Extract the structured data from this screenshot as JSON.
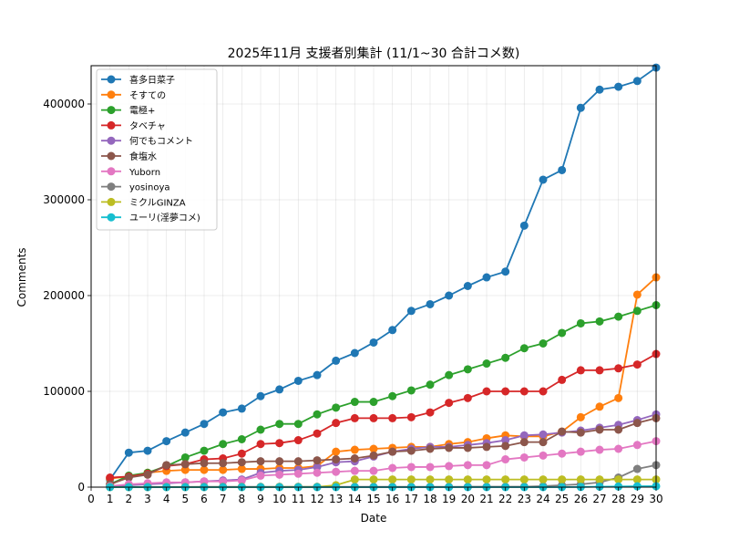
{
  "chart_data": {
    "type": "line",
    "title": "2025年11月 支援者別集計 (11/1~30 合計コメ数)",
    "xlabel": "Date",
    "ylabel": "Comments",
    "xlim": [
      0,
      30
    ],
    "ylim": [
      0,
      440000
    ],
    "x_ticks": [
      0,
      1,
      2,
      3,
      4,
      5,
      6,
      7,
      8,
      9,
      10,
      11,
      12,
      13,
      14,
      15,
      16,
      17,
      18,
      19,
      20,
      21,
      22,
      23,
      24,
      25,
      26,
      27,
      28,
      29,
      30
    ],
    "y_ticks": [
      0,
      100000,
      200000,
      300000,
      400000
    ],
    "grid": true,
    "legend_position": "top-left",
    "x": [
      1,
      2,
      3,
      4,
      5,
      6,
      7,
      8,
      9,
      10,
      11,
      12,
      13,
      14,
      15,
      16,
      17,
      18,
      19,
      20,
      21,
      22,
      23,
      24,
      25,
      26,
      27,
      28,
      29,
      30
    ],
    "series": [
      {
        "name": "喜多日菜子",
        "color": "#1f77b4",
        "values": [
          8000,
          36000,
          38000,
          48000,
          57000,
          66000,
          78000,
          82000,
          95000,
          102000,
          111000,
          117000,
          132000,
          140000,
          151000,
          164000,
          184000,
          191000,
          200000,
          210000,
          219000,
          225000,
          273000,
          321000,
          331000,
          396000,
          415000,
          418000,
          424000,
          438000
        ]
      },
      {
        "name": "そすての",
        "color": "#ff7f0e",
        "values": [
          9000,
          11000,
          15000,
          17000,
          18000,
          18000,
          18000,
          19000,
          19000,
          20000,
          20000,
          22000,
          37000,
          39000,
          40000,
          41000,
          42000,
          42000,
          45000,
          47000,
          51000,
          54000,
          53000,
          53000,
          58000,
          73000,
          84000,
          93000,
          201000,
          219000
        ]
      },
      {
        "name": "電極+",
        "color": "#2ca02c",
        "values": [
          3000,
          12000,
          15000,
          22000,
          31000,
          38000,
          45000,
          50000,
          60000,
          66000,
          66000,
          76000,
          83000,
          89000,
          89000,
          95000,
          101000,
          107000,
          117000,
          123000,
          129000,
          135000,
          145000,
          150000,
          161000,
          171000,
          173000,
          178000,
          184000,
          190000
        ]
      },
      {
        "name": "タベチャ",
        "color": "#d62728",
        "values": [
          10000,
          11000,
          14000,
          22000,
          24000,
          29000,
          30000,
          35000,
          45000,
          46000,
          49000,
          56000,
          67000,
          72000,
          72000,
          72000,
          73000,
          78000,
          88000,
          93000,
          100000,
          100000,
          100000,
          100000,
          112000,
          122000,
          122000,
          124000,
          128000,
          139000
        ]
      },
      {
        "name": "何でもコメント",
        "color": "#9467bd",
        "values": [
          1000,
          2000,
          3000,
          4000,
          5000,
          6000,
          7000,
          8000,
          15000,
          17000,
          18000,
          21000,
          26000,
          27000,
          32000,
          37000,
          40000,
          42000,
          42000,
          44000,
          46000,
          49000,
          54000,
          55000,
          57000,
          59000,
          62000,
          65000,
          70000,
          76000
        ]
      },
      {
        "name": "食塩水",
        "color": "#8c564b",
        "values": [
          3000,
          10000,
          13000,
          23000,
          24000,
          25000,
          25000,
          26000,
          27000,
          27000,
          27000,
          28000,
          29000,
          30000,
          33000,
          37000,
          38000,
          40000,
          41000,
          41000,
          42000,
          43000,
          47000,
          47000,
          58000,
          57000,
          60000,
          60000,
          67000,
          72000
        ]
      },
      {
        "name": "Yuborn",
        "color": "#e377c2",
        "values": [
          1000,
          3000,
          4000,
          5000,
          5000,
          6000,
          6000,
          7000,
          12000,
          13000,
          14000,
          15000,
          16000,
          17000,
          17000,
          20000,
          21000,
          21000,
          22000,
          23000,
          23000,
          29000,
          31000,
          33000,
          35000,
          37000,
          39000,
          40000,
          44000,
          48000
        ]
      },
      {
        "name": "yosinoya",
        "color": "#7f7f7f",
        "values": [
          200,
          200,
          200,
          200,
          200,
          300,
          300,
          300,
          300,
          300,
          300,
          300,
          300,
          300,
          300,
          300,
          300,
          300,
          300,
          400,
          400,
          400,
          500,
          1000,
          2000,
          3000,
          5000,
          10000,
          19000,
          23000
        ]
      },
      {
        "name": "ミクルGINZA",
        "color": "#bcbd22",
        "values": [
          100,
          100,
          100,
          100,
          100,
          100,
          100,
          100,
          100,
          200,
          200,
          200,
          2000,
          8000,
          8000,
          8000,
          8000,
          8000,
          8000,
          8000,
          8000,
          8000,
          8000,
          8000,
          8000,
          8000,
          8000,
          8000,
          8000,
          8000
        ]
      },
      {
        "name": "ユーリ(淫夢コメ)",
        "color": "#17becf",
        "values": [
          0,
          0,
          0,
          0,
          0,
          0,
          0,
          0,
          0,
          0,
          0,
          0,
          0,
          0,
          0,
          0,
          0,
          0,
          0,
          0,
          0,
          0,
          0,
          0,
          0,
          200,
          500,
          700,
          900,
          1000
        ]
      }
    ]
  }
}
